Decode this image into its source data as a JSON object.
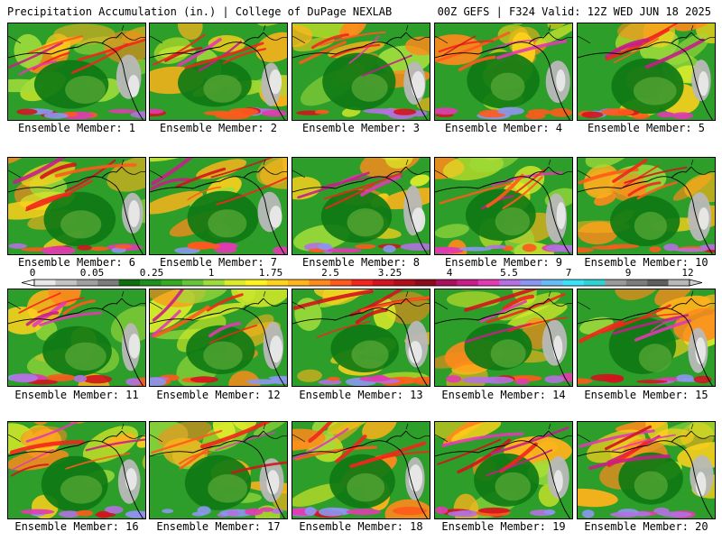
{
  "header": {
    "left": "Precipitation Accumulation (in.) | College of DuPage NEXLAB",
    "right": "00Z GEFS | F324 Valid: 12Z WED JUN 18 2025"
  },
  "panel_label_prefix": "Ensemble Member: ",
  "members": [
    1,
    2,
    3,
    4,
    5,
    6,
    7,
    8,
    9,
    10,
    11,
    12,
    13,
    14,
    15,
    16,
    17,
    18,
    19,
    20
  ],
  "colorbar": {
    "ticks": [
      "0",
      "0.05",
      "0.25",
      "1",
      "1.75",
      "2.5",
      "3.25",
      "4",
      "5.5",
      "7",
      "9",
      "12"
    ],
    "colors": [
      "#e8e8e8",
      "#c4c4c4",
      "#a0a0a0",
      "#7c7c7c",
      "#0f6f0f",
      "#1e8f1e",
      "#33aa22",
      "#66c43a",
      "#9edc3c",
      "#dcec2a",
      "#fff21e",
      "#ffd21c",
      "#ffb31c",
      "#ff8a1c",
      "#ff5a1c",
      "#f2261c",
      "#d2141e",
      "#b00e18",
      "#8c0a1a",
      "#a8125c",
      "#c81e8a",
      "#e23ab2",
      "#b470e0",
      "#8c96f0",
      "#66bcf6",
      "#3ce2f8",
      "#2ed2d2",
      "#9a9a9a",
      "#7c7c7c",
      "#5e5e5e",
      "#b8b8b8"
    ]
  }
}
